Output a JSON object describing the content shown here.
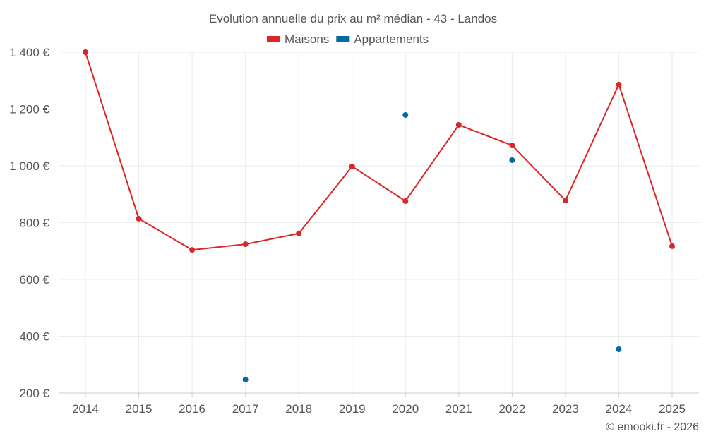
{
  "chart_data": {
    "type": "line",
    "title": "Evolution annuelle du prix au m² médian - 43 - Landos",
    "categories": [
      "2014",
      "2015",
      "2016",
      "2017",
      "2018",
      "2019",
      "2020",
      "2021",
      "2022",
      "2023",
      "2024",
      "2025"
    ],
    "y_ticks": [
      200,
      400,
      600,
      800,
      1000,
      1200,
      1400
    ],
    "y_tick_labels": [
      "200 €",
      "400 €",
      "600 €",
      "800 €",
      "1 000 €",
      "1 200 €",
      "1 400 €"
    ],
    "ylim": [
      200,
      1400
    ],
    "grid": true,
    "legend_position": "top-center",
    "series": [
      {
        "name": "Maisons",
        "color": "#dc2626",
        "line": true,
        "values": [
          1400,
          814,
          704,
          724,
          762,
          998,
          876,
          1144,
          1072,
          878,
          1286,
          717
        ]
      },
      {
        "name": "Appartements",
        "color": "#0369a1",
        "line": false,
        "values": [
          null,
          null,
          null,
          247,
          null,
          null,
          1179,
          null,
          1020,
          null,
          354,
          null
        ]
      }
    ]
  },
  "credit": "© emooki.fr - 2026"
}
